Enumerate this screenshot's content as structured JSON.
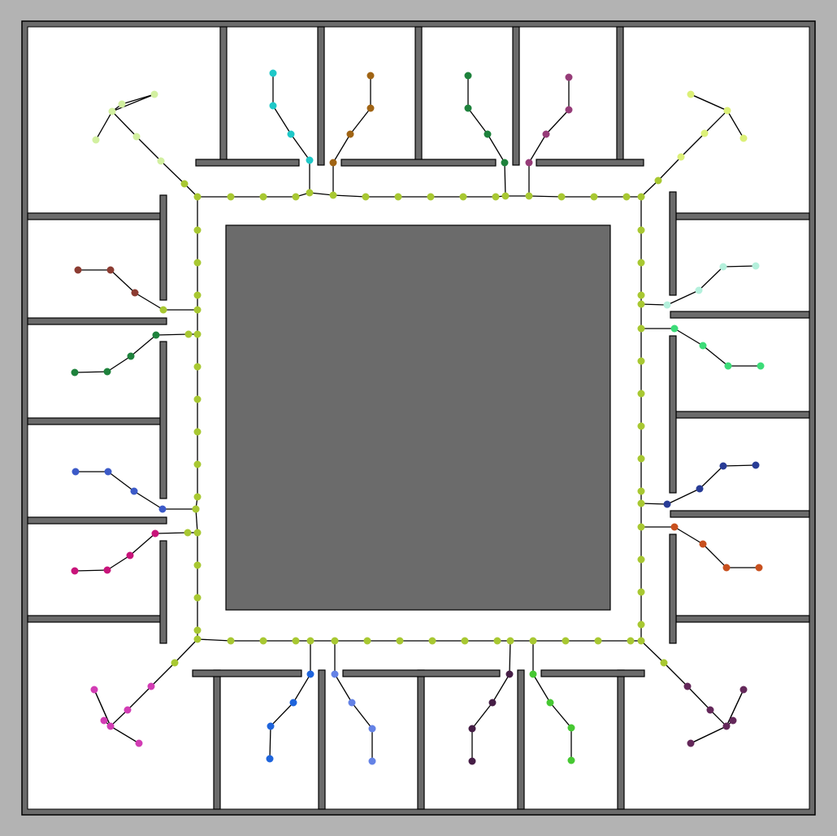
{
  "legend": [],
  "colors": {
    "background": "#b3b3b3",
    "floor": "#ffffff",
    "wall": "#6b6b6b",
    "obstacle": "#6b6b6b",
    "edge": "#000000",
    "corridor_node": "#a8c832"
  },
  "graph": {
    "corridor": {
      "color": "#a8c832",
      "nodes": []
    },
    "branches": [
      {
        "name": "room-tl-corner",
        "color": "#d2f0a0"
      },
      {
        "name": "room-top-1",
        "color": "#1ec8c8"
      },
      {
        "name": "room-top-2",
        "color": "#a06414"
      },
      {
        "name": "room-top-3",
        "color": "#1e823c"
      },
      {
        "name": "room-top-4",
        "color": "#963c78"
      },
      {
        "name": "room-tr-corner",
        "color": "#dcf078"
      },
      {
        "name": "room-left-1",
        "color": "#8c3c32"
      },
      {
        "name": "room-left-2",
        "color": "#1e823c"
      },
      {
        "name": "room-left-3",
        "color": "#3c5ac8"
      },
      {
        "name": "room-left-4",
        "color": "#c8147a"
      },
      {
        "name": "room-right-1",
        "color": "#b4f0dc"
      },
      {
        "name": "room-right-2",
        "color": "#3cdc78"
      },
      {
        "name": "room-right-3",
        "color": "#283c96"
      },
      {
        "name": "room-right-4",
        "color": "#c8501e"
      },
      {
        "name": "room-bl-corner",
        "color": "#d23cb4"
      },
      {
        "name": "room-bottom-1",
        "color": "#1e64dc"
      },
      {
        "name": "room-bottom-2",
        "color": "#6482e6"
      },
      {
        "name": "room-bottom-3",
        "color": "#461e46"
      },
      {
        "name": "room-bottom-4",
        "color": "#46c832"
      },
      {
        "name": "room-br-corner",
        "color": "#64285a"
      }
    ]
  }
}
